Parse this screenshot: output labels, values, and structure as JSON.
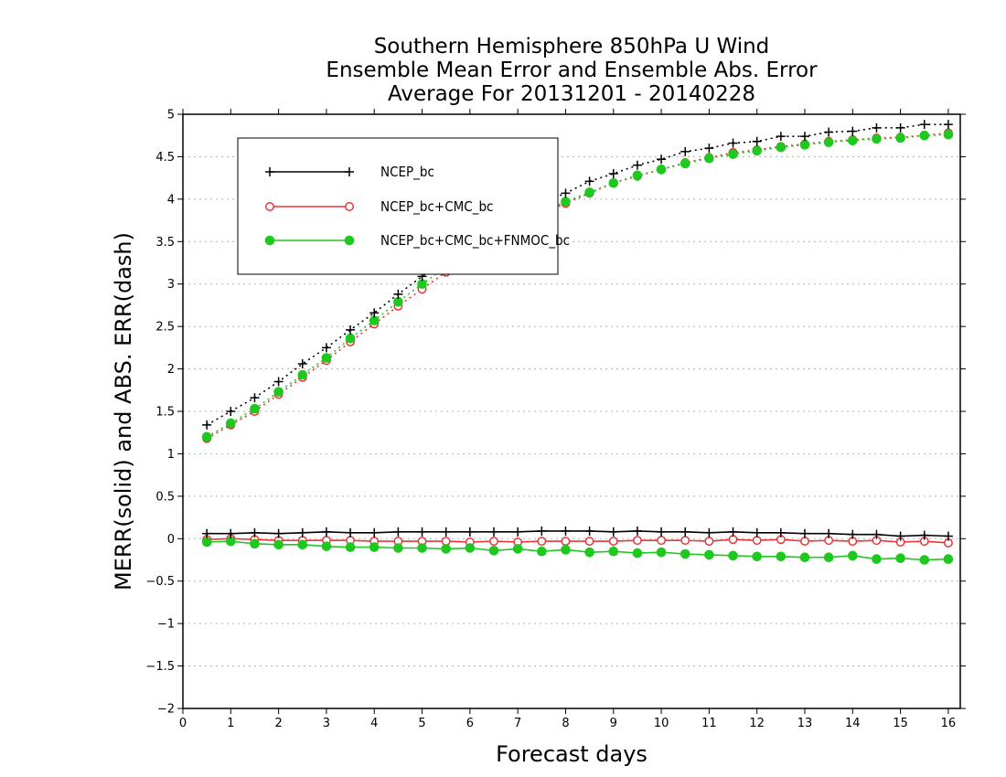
{
  "chart_data": {
    "type": "line",
    "title": [
      "Southern Hemisphere 850hPa U Wind",
      "Ensemble Mean Error and Ensemble Abs. Error",
      "Average For 20131201 - 20140228"
    ],
    "xlabel": "Forecast days",
    "ylabel": "MERR(solid) and ABS. ERR(dash)",
    "xlim": [
      0,
      16.25
    ],
    "ylim": [
      -2,
      5
    ],
    "x_ticks": [
      0,
      1,
      2,
      3,
      4,
      5,
      6,
      7,
      8,
      9,
      10,
      11,
      12,
      13,
      14,
      15,
      16
    ],
    "y_ticks": [
      -2,
      -1.5,
      -1,
      -0.5,
      0,
      0.5,
      1,
      1.5,
      2,
      2.5,
      3,
      3.5,
      4,
      4.5,
      5
    ],
    "y_tick_labels": [
      "−2",
      "−1.5",
      "−1",
      "−0.5",
      "0",
      "0.5",
      "1",
      "1.5",
      "2",
      "2.5",
      "3",
      "3.5",
      "4",
      "4.5",
      "5"
    ],
    "grid": "horizontal dotted",
    "legend": {
      "placement": "top-left",
      "entries": [
        "NCEP_bc",
        "NCEP_bc+CMC_bc",
        "NCEP_bc+CMC_bc+FNMOC_bc"
      ]
    },
    "x": [
      0.5,
      1.0,
      1.5,
      2.0,
      2.5,
      3.0,
      3.5,
      4.0,
      4.5,
      5.0,
      5.5,
      6.0,
      6.5,
      7.0,
      7.5,
      8.0,
      8.5,
      9.0,
      9.5,
      10.0,
      10.5,
      11.0,
      11.5,
      12.0,
      12.5,
      13.0,
      13.5,
      14.0,
      14.5,
      15.0,
      15.5,
      16.0
    ],
    "series": [
      {
        "name": "NCEP_bc",
        "color": "#000000",
        "marker": "plus",
        "merr": [
          0.06,
          0.06,
          0.07,
          0.06,
          0.07,
          0.08,
          0.07,
          0.07,
          0.08,
          0.08,
          0.08,
          0.08,
          0.08,
          0.08,
          0.09,
          0.09,
          0.09,
          0.08,
          0.09,
          0.08,
          0.08,
          0.07,
          0.08,
          0.07,
          0.07,
          0.06,
          0.06,
          0.05,
          0.05,
          0.03,
          0.04,
          0.03
        ],
        "abs_err": [
          1.34,
          1.5,
          1.66,
          1.85,
          2.06,
          2.25,
          2.46,
          2.66,
          2.88,
          3.09,
          3.3,
          3.48,
          3.66,
          3.83,
          3.96,
          4.07,
          4.21,
          4.3,
          4.4,
          4.47,
          4.56,
          4.6,
          4.66,
          4.68,
          4.74,
          4.74,
          4.79,
          4.8,
          4.84,
          4.84,
          4.88,
          4.88
        ]
      },
      {
        "name": "NCEP_bc+CMC_bc",
        "color": "#e8353a",
        "marker": "open-circle",
        "merr": [
          -0.01,
          0.0,
          -0.01,
          -0.02,
          -0.02,
          -0.02,
          -0.02,
          -0.03,
          -0.03,
          -0.03,
          -0.03,
          -0.04,
          -0.03,
          -0.04,
          -0.03,
          -0.03,
          -0.03,
          -0.03,
          -0.02,
          -0.02,
          -0.02,
          -0.03,
          -0.01,
          -0.02,
          -0.01,
          -0.03,
          -0.02,
          -0.03,
          -0.02,
          -0.04,
          -0.03,
          -0.05
        ],
        "abs_err": [
          1.18,
          1.34,
          1.5,
          1.7,
          1.9,
          2.1,
          2.32,
          2.53,
          2.74,
          2.94,
          3.14,
          3.32,
          3.52,
          3.68,
          3.83,
          3.95,
          4.07,
          4.19,
          4.27,
          4.35,
          4.43,
          4.49,
          4.55,
          4.58,
          4.62,
          4.65,
          4.68,
          4.7,
          4.72,
          4.73,
          4.75,
          4.78
        ]
      },
      {
        "name": "NCEP_bc+CMC_bc+FNMOC_bc",
        "color": "#1ec81e",
        "marker": "filled-circle",
        "merr": [
          -0.04,
          -0.03,
          -0.06,
          -0.07,
          -0.07,
          -0.09,
          -0.1,
          -0.1,
          -0.11,
          -0.11,
          -0.12,
          -0.11,
          -0.14,
          -0.12,
          -0.15,
          -0.13,
          -0.16,
          -0.15,
          -0.17,
          -0.16,
          -0.18,
          -0.19,
          -0.2,
          -0.21,
          -0.21,
          -0.22,
          -0.22,
          -0.2,
          -0.24,
          -0.23,
          -0.25,
          -0.24
        ],
        "abs_err": [
          1.2,
          1.36,
          1.53,
          1.73,
          1.93,
          2.13,
          2.36,
          2.57,
          2.79,
          3.0,
          3.2,
          3.37,
          3.56,
          3.71,
          3.85,
          3.97,
          4.08,
          4.19,
          4.28,
          4.35,
          4.42,
          4.48,
          4.53,
          4.57,
          4.61,
          4.64,
          4.67,
          4.69,
          4.71,
          4.72,
          4.75,
          4.76
        ]
      }
    ]
  }
}
